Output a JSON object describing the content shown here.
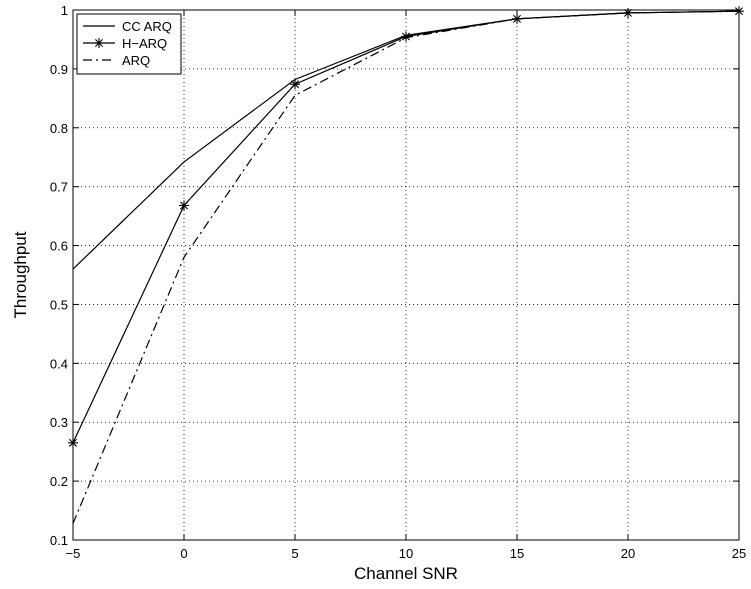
{
  "chart_data": {
    "type": "line",
    "title": "",
    "xlabel": "Channel SNR",
    "ylabel": "Throughput",
    "xlim": [
      -5,
      25
    ],
    "ylim": [
      0.1,
      1
    ],
    "xticks": [
      -5,
      0,
      5,
      10,
      15,
      20,
      25
    ],
    "yticks": [
      0.1,
      0.2,
      0.3,
      0.4,
      0.5,
      0.6,
      0.7,
      0.8,
      0.9,
      1
    ],
    "ytick_labels": [
      "0.1",
      "0.2",
      "0.3",
      "0.4",
      "0.5",
      "0.6",
      "0.7",
      "0.8",
      "0.9",
      "1"
    ],
    "grid": true,
    "legend_position": "top-left",
    "x": [
      -5,
      0,
      5,
      10,
      15,
      20,
      25
    ],
    "series": [
      {
        "name": "CC ARQ",
        "values": [
          0.56,
          0.742,
          0.882,
          0.957,
          0.985,
          0.995,
          0.998
        ],
        "line_style": "solid",
        "marker": "none",
        "color": "#000000"
      },
      {
        "name": "H−ARQ",
        "values": [
          0.265,
          0.668,
          0.874,
          0.955,
          0.985,
          0.995,
          0.998
        ],
        "line_style": "solid",
        "marker": "asterisk",
        "color": "#000000"
      },
      {
        "name": "ARQ",
        "values": [
          0.128,
          0.58,
          0.855,
          0.953,
          0.985,
          0.995,
          0.998
        ],
        "line_style": "dashdot",
        "marker": "none",
        "color": "#000000"
      }
    ]
  }
}
